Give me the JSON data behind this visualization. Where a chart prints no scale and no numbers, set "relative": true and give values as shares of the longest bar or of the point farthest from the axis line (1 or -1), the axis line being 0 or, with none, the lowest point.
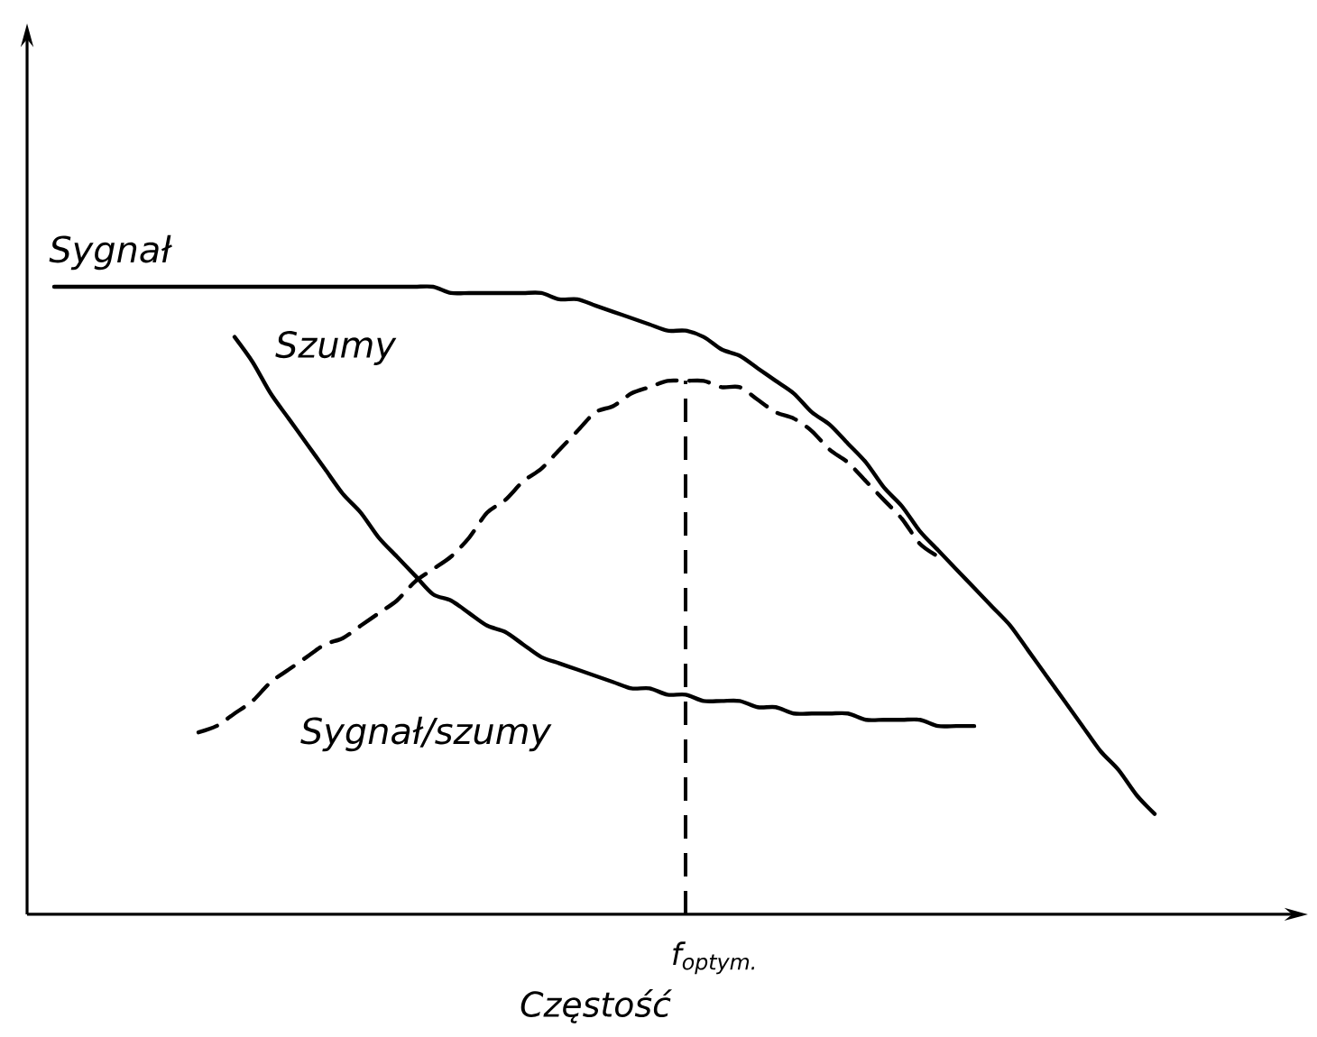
{
  "chart_data": {
    "type": "line",
    "relative": true,
    "xlabel": "Częstość",
    "categories": [
      null,
      null,
      null,
      null,
      null,
      null,
      null,
      null,
      null,
      null,
      null,
      null,
      null,
      null,
      null,
      null,
      null,
      null,
      null,
      null,
      null,
      null,
      null,
      null,
      null,
      null,
      null,
      null,
      null,
      null,
      null,
      null,
      null,
      null,
      null,
      null,
      null,
      null,
      null,
      null,
      null,
      null,
      null,
      null,
      null,
      null,
      null,
      null,
      null,
      null,
      null,
      null,
      null,
      null,
      null,
      null,
      null,
      null,
      null,
      null,
      null,
      null,
      null,
      null,
      null,
      null,
      null,
      null,
      null,
      null,
      null
    ],
    "series": [
      {
        "name": "Sygnał",
        "color": "#000000",
        "values": [
          null,
          1.0,
          1.0,
          1.0,
          1.0,
          1.0,
          1.0,
          1.0,
          1.0,
          1.0,
          1.0,
          1.0,
          1.0,
          1.0,
          1.0,
          1.0,
          1.0,
          1.0,
          1.0,
          1.0,
          1.0,
          1.0,
          1.0,
          0.99,
          0.99,
          0.99,
          0.99,
          0.99,
          0.99,
          0.98,
          0.98,
          0.97,
          0.96,
          0.95,
          0.94,
          0.93,
          0.93,
          0.92,
          0.9,
          0.89,
          0.87,
          0.85,
          0.83,
          0.8,
          0.78,
          0.75,
          0.72,
          0.68,
          0.65,
          0.61,
          0.58,
          0.55,
          0.52,
          0.49,
          0.46,
          0.42,
          0.38,
          0.34,
          0.3,
          0.26,
          0.23,
          0.19,
          0.16,
          null,
          null,
          null,
          null,
          null,
          null,
          null,
          null
        ]
      },
      {
        "name": "Szumy",
        "color": "#000000",
        "values": [
          null,
          null,
          null,
          null,
          null,
          null,
          null,
          null,
          null,
          null,
          null,
          0.92,
          0.88,
          0.83,
          0.79,
          0.75,
          0.71,
          0.67,
          0.64,
          0.6,
          0.57,
          0.54,
          0.51,
          0.5,
          0.48,
          0.46,
          0.45,
          0.43,
          0.41,
          0.4,
          0.39,
          0.38,
          0.37,
          0.36,
          0.36,
          0.35,
          0.35,
          0.34,
          0.34,
          0.34,
          0.33,
          0.33,
          0.32,
          0.32,
          0.32,
          0.32,
          0.31,
          0.31,
          0.31,
          0.31,
          0.3,
          0.3,
          0.3,
          null,
          null,
          null,
          null,
          null,
          null,
          null,
          null,
          null,
          null,
          null,
          null,
          null,
          null,
          null,
          null,
          null,
          null
        ]
      },
      {
        "name": "Sygnał/szumy",
        "color": "#000000",
        "line_style": "dashed",
        "values": [
          null,
          null,
          null,
          null,
          null,
          null,
          null,
          null,
          null,
          0.29,
          0.3,
          0.32,
          0.34,
          0.37,
          0.39,
          0.41,
          0.43,
          0.44,
          0.46,
          0.48,
          0.5,
          0.53,
          0.55,
          0.57,
          0.6,
          0.64,
          0.66,
          0.69,
          0.71,
          0.74,
          0.77,
          0.8,
          0.81,
          0.83,
          0.84,
          0.85,
          0.85,
          0.85,
          0.84,
          0.84,
          0.82,
          0.8,
          0.79,
          0.77,
          0.74,
          0.72,
          0.69,
          0.66,
          0.63,
          0.59,
          0.57,
          null,
          null,
          null,
          null,
          null,
          null,
          null,
          null,
          null,
          null,
          null,
          null,
          null,
          null,
          null,
          null,
          null,
          null,
          null,
          null
        ]
      }
    ],
    "annotations": [
      "f$_{optym.}$"
    ]
  }
}
